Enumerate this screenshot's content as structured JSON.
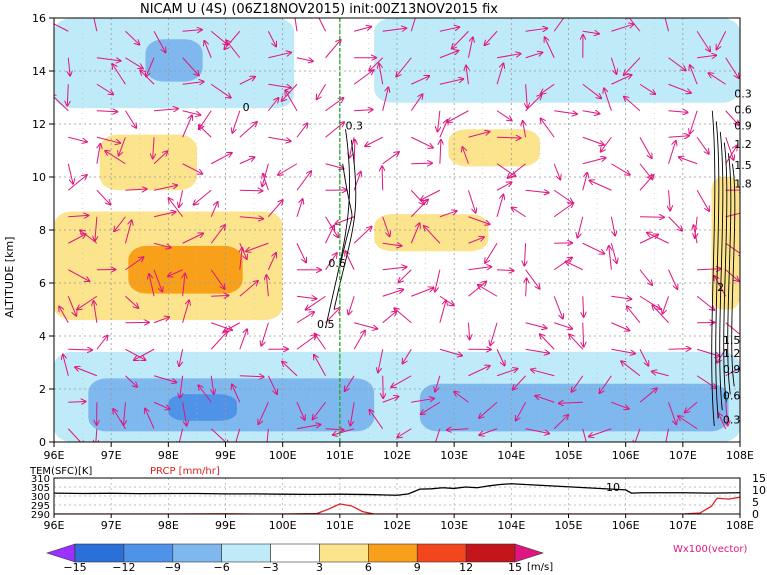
{
  "chart_data": [
    {
      "type": "heatmap",
      "title": "NICAM U (4S) (06Z18NOV2015) init:00Z13NOV2015  fix",
      "xlabel": "",
      "ylabel": "ALTITUDE [km]",
      "x_ticks": [
        "96E",
        "97E",
        "98E",
        "99E",
        "100E",
        "101E",
        "102E",
        "103E",
        "104E",
        "105E",
        "106E",
        "107E",
        "108E"
      ],
      "x_tick_values": [
        96,
        97,
        98,
        99,
        100,
        101,
        102,
        103,
        104,
        105,
        106,
        107,
        108
      ],
      "y_ticks": [
        "0",
        "2",
        "4",
        "6",
        "8",
        "10",
        "12",
        "14",
        "16"
      ],
      "y_tick_values": [
        0,
        2,
        4,
        6,
        8,
        10,
        12,
        14,
        16
      ],
      "xlim": [
        96,
        108
      ],
      "ylim": [
        0,
        16
      ],
      "grid": true,
      "marker_line_lon": 101,
      "color_levels": [
        -15,
        -12,
        -9,
        -6,
        -3,
        3,
        6,
        9,
        12,
        15
      ],
      "color_unit": "[m/s]",
      "vector_label": "Wx100(vector)",
      "shaded_regions": [
        {
          "value_range": [
            3,
            6
          ],
          "lon": [
            96.0,
            100.0
          ],
          "alt": [
            4.6,
            8.7
          ],
          "color": "#fbe48c"
        },
        {
          "value_range": [
            6,
            9
          ],
          "lon": [
            97.3,
            99.3
          ],
          "alt": [
            5.6,
            7.4
          ],
          "color": "#f9a01b"
        },
        {
          "value_range": [
            3,
            6
          ],
          "lon": [
            96.8,
            98.5
          ],
          "alt": [
            9.5,
            11.6
          ],
          "color": "#fbe48c"
        },
        {
          "value_range": [
            3,
            6
          ],
          "lon": [
            102.9,
            104.5
          ],
          "alt": [
            10.4,
            11.8
          ],
          "color": "#fbe48c"
        },
        {
          "value_range": [
            3,
            6
          ],
          "lon": [
            101.6,
            103.6
          ],
          "alt": [
            7.2,
            8.6
          ],
          "color": "#fbe48c"
        },
        {
          "value_range": [
            3,
            6
          ],
          "lon": [
            107.5,
            108.0
          ],
          "alt": [
            5.0,
            10.0
          ],
          "color": "#fbe48c"
        },
        {
          "value_range": [
            -6,
            -3
          ],
          "lon": [
            96.0,
            100.2
          ],
          "alt": [
            12.6,
            16.0
          ],
          "color": "#bfeaf7"
        },
        {
          "value_range": [
            -9,
            -6
          ],
          "lon": [
            97.6,
            98.6
          ],
          "alt": [
            13.6,
            15.2
          ],
          "color": "#7fb8ef"
        },
        {
          "value_range": [
            -6,
            -3
          ],
          "lon": [
            101.6,
            108.0
          ],
          "alt": [
            12.8,
            16.0
          ],
          "color": "#bfeaf7"
        },
        {
          "value_range": [
            -6,
            -3
          ],
          "lon": [
            96.0,
            108.0
          ],
          "alt": [
            0.0,
            3.4
          ],
          "color": "#bfeaf7"
        },
        {
          "value_range": [
            -9,
            -6
          ],
          "lon": [
            96.6,
            101.6
          ],
          "alt": [
            0.4,
            2.4
          ],
          "color": "#7fb8ef"
        },
        {
          "value_range": [
            -9,
            -6
          ],
          "lon": [
            102.4,
            107.8
          ],
          "alt": [
            0.4,
            2.2
          ],
          "color": "#7fb8ef"
        },
        {
          "value_range": [
            -12,
            -9
          ],
          "lon": [
            98.0,
            99.2
          ],
          "alt": [
            0.8,
            1.8
          ],
          "color": "#4f93e8"
        }
      ],
      "contour_labels": [
        {
          "text": "0",
          "lon": 99.3,
          "alt": 12.5
        },
        {
          "text": "0.3",
          "lon": 101.1,
          "alt": 11.8
        },
        {
          "text": "0.6",
          "lon": 100.8,
          "alt": 6.6
        },
        {
          "text": "0.5",
          "lon": 100.6,
          "alt": 4.3
        },
        {
          "text": "0.3",
          "lon": 107.9,
          "alt": 13.0
        },
        {
          "text": "0.6",
          "lon": 107.9,
          "alt": 12.4
        },
        {
          "text": "0.9",
          "lon": 107.9,
          "alt": 11.8
        },
        {
          "text": "1.2",
          "lon": 107.9,
          "alt": 11.1
        },
        {
          "text": "1.5",
          "lon": 107.9,
          "alt": 10.3
        },
        {
          "text": "1.8",
          "lon": 107.9,
          "alt": 9.6
        },
        {
          "text": "2",
          "lon": 107.6,
          "alt": 5.7
        },
        {
          "text": "1.5",
          "lon": 107.7,
          "alt": 3.7
        },
        {
          "text": "1.2",
          "lon": 107.7,
          "alt": 3.2
        },
        {
          "text": "0.9",
          "lon": 107.7,
          "alt": 2.6
        },
        {
          "text": "0.6",
          "lon": 107.7,
          "alt": 1.6
        },
        {
          "text": "0.3",
          "lon": 107.7,
          "alt": 0.7
        }
      ]
    },
    {
      "type": "line",
      "title": "",
      "xlim": [
        96,
        108
      ],
      "x_ticks": [
        "96E",
        "97E",
        "98E",
        "99E",
        "100E",
        "101E",
        "102E",
        "103E",
        "104E",
        "105E",
        "106E",
        "107E",
        "108E"
      ],
      "x_tick_values": [
        96,
        97,
        98,
        99,
        100,
        101,
        102,
        103,
        104,
        105,
        106,
        107,
        108
      ],
      "left_axis": {
        "ticks": [
          "310",
          "305",
          "300",
          "295",
          "290"
        ],
        "tick_values": [
          310,
          305,
          300,
          295,
          290
        ],
        "range": [
          290,
          310
        ]
      },
      "right_axis": {
        "ticks": [
          "15",
          "10",
          "5",
          "0"
        ],
        "tick_values": [
          15,
          10,
          5,
          0
        ],
        "range": [
          0,
          15
        ]
      },
      "series": [
        {
          "name": "TEM(SFC)[K]",
          "color": "#000000",
          "axis": "left",
          "x": [
            96.0,
            96.5,
            97.0,
            97.5,
            98.0,
            98.5,
            99.0,
            99.5,
            100.0,
            100.5,
            101.0,
            101.5,
            102.0,
            102.2,
            102.4,
            102.6,
            102.8,
            103.0,
            103.2,
            103.4,
            103.6,
            103.8,
            104.0,
            106.0,
            106.1,
            106.3,
            106.6,
            107.0,
            107.5,
            108.0
          ],
          "y": [
            301.6,
            301.4,
            301.5,
            301.3,
            301.4,
            301.4,
            301.2,
            301.2,
            301.0,
            300.9,
            301.0,
            300.8,
            300.4,
            301.2,
            303.8,
            304.0,
            304.6,
            304.2,
            305.0,
            304.6,
            305.6,
            306.4,
            306.8,
            303.4,
            301.6,
            301.8,
            301.8,
            301.8,
            301.6,
            301.8
          ]
        },
        {
          "name": "PRCP [mm/hr]",
          "color": "#e02020",
          "axis": "right",
          "x": [
            96.0,
            98.0,
            99.0,
            99.5,
            100.0,
            100.6,
            100.8,
            101.0,
            101.2,
            101.4,
            101.6,
            102.0,
            104.0,
            106.0,
            107.0,
            107.3,
            107.5,
            107.6,
            107.8,
            108.0
          ],
          "y": [
            0.0,
            0.0,
            0.1,
            0.0,
            0.0,
            0.2,
            2.0,
            4.2,
            3.4,
            1.0,
            0.0,
            0.0,
            0.0,
            0.0,
            0.0,
            0.4,
            3.2,
            6.6,
            6.2,
            7.0
          ]
        }
      ],
      "annotations": [
        "10"
      ]
    }
  ]
}
